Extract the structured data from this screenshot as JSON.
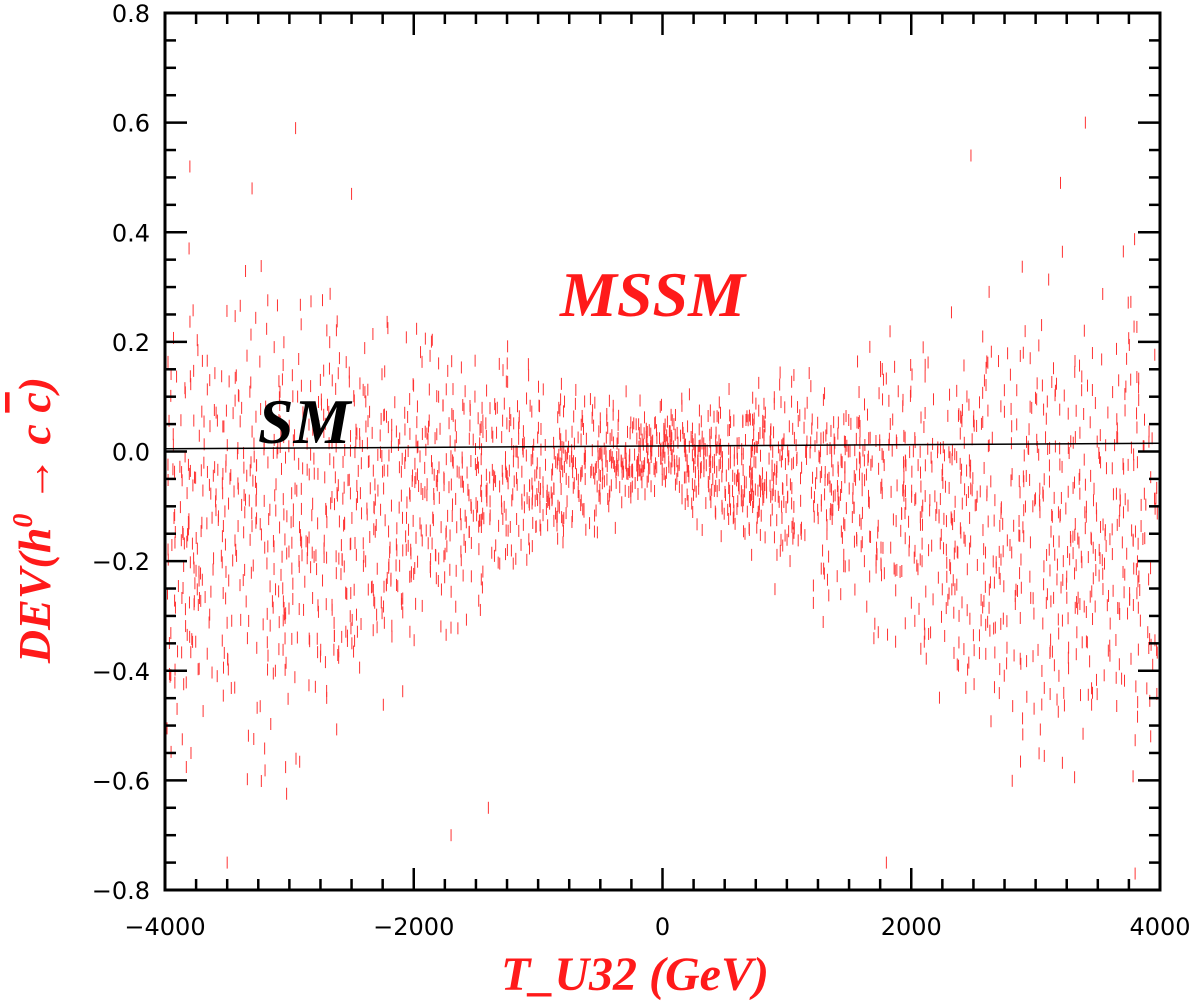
{
  "chart_data": {
    "type": "scatter",
    "title": "",
    "xlabel": "T_U32 (GeV)",
    "ylabel_parts": {
      "prefix": "DEV(h",
      "superscript": "0",
      "arrow": " → ",
      "c1": "c",
      "c2": "c",
      "suffix": ")"
    },
    "xlim": [
      -4000,
      4000
    ],
    "ylim": [
      -0.8,
      0.8
    ],
    "x_ticks": [
      -4000,
      -2000,
      0,
      2000,
      4000
    ],
    "x_tick_labels": [
      "−4000",
      "−2000",
      "0",
      "2000",
      "4000"
    ],
    "y_ticks": [
      -0.8,
      -0.6,
      -0.4,
      -0.2,
      0.0,
      0.2,
      0.4,
      0.6,
      0.8
    ],
    "y_tick_labels": [
      "−0.8",
      "−0.6",
      "−0.4",
      "−0.2",
      "0.0",
      "0.2",
      "0.4",
      "0.6",
      "0.8"
    ],
    "grid": false,
    "annotations": [
      {
        "text": "MSSM",
        "color": "#ff1a1a"
      },
      {
        "text": "SM",
        "color": "#000000"
      }
    ],
    "series": [
      {
        "name": "SM",
        "type": "line",
        "color": "#000000",
        "x": [
          -4000,
          4000
        ],
        "y": [
          0.005,
          0.015
        ]
      },
      {
        "name": "MSSM",
        "type": "scatter",
        "marker": "vertical-dash",
        "color": "#ff3333",
        "n_points": 2600,
        "envelope_y_at_x": {
          "x": [
            -4000,
            -3000,
            -2000,
            -1000,
            0,
            1000,
            2000,
            3000,
            4000
          ],
          "upper": [
            0.5,
            0.48,
            0.32,
            0.2,
            0.1,
            0.2,
            0.32,
            0.46,
            0.52
          ],
          "lower": [
            -0.78,
            -0.75,
            -0.5,
            -0.28,
            -0.1,
            -0.3,
            -0.48,
            -0.72,
            -0.8
          ]
        },
        "outliers": [
          [
            -3800,
            0.52
          ],
          [
            -2950,
            0.59
          ],
          [
            -3300,
            0.48
          ],
          [
            -2500,
            0.47
          ],
          [
            2480,
            0.54
          ],
          [
            3400,
            0.6
          ],
          [
            3200,
            0.49
          ],
          [
            -3500,
            -0.75
          ],
          [
            3800,
            -0.77
          ],
          [
            1800,
            -0.75
          ],
          [
            -1700,
            -0.7
          ],
          [
            -1400,
            -0.65
          ]
        ]
      }
    ]
  }
}
